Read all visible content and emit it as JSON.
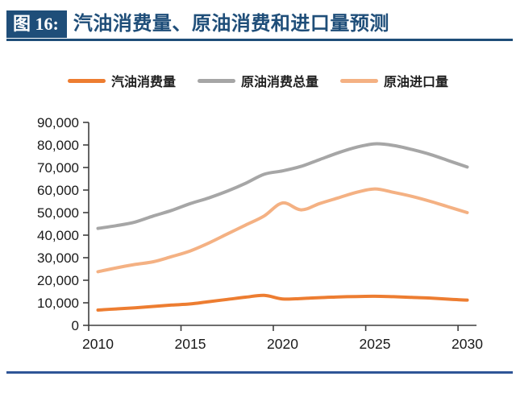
{
  "figure": {
    "label": "图 16:",
    "title": "汽油消费量、原油消费和进口量预测"
  },
  "colors": {
    "header_navy": "#1F4E79",
    "bottom_rule_blue": "#2F5597",
    "axis": "#3f3f3f",
    "tick_label": "#1a1a1a"
  },
  "chart_data": {
    "type": "line",
    "title": "汽油消费量、原油消费和进口量预测",
    "x": [
      2010,
      2011,
      2012,
      2013,
      2014,
      2015,
      2016,
      2017,
      2018,
      2019,
      2020,
      2021,
      2022,
      2023,
      2024,
      2025,
      2026,
      2027,
      2028,
      2029,
      2030
    ],
    "series": [
      {
        "name": "汽油消费量",
        "color": "#ED7D31",
        "values": [
          6800,
          7300,
          7800,
          8400,
          9000,
          9500,
          10500,
          11500,
          12500,
          13300,
          11700,
          11900,
          12300,
          12600,
          12800,
          12900,
          12700,
          12400,
          12100,
          11600,
          11200
        ]
      },
      {
        "name": "原油消费总量",
        "color": "#A6A6A6",
        "values": [
          43000,
          44200,
          45800,
          48500,
          51000,
          54000,
          56500,
          59500,
          63000,
          67000,
          68500,
          70500,
          73500,
          76500,
          79000,
          80500,
          79800,
          78000,
          75800,
          73000,
          70200
        ]
      },
      {
        "name": "原油进口量",
        "color": "#F4B183",
        "values": [
          23800,
          25500,
          27000,
          28200,
          30500,
          33000,
          36500,
          40500,
          44500,
          48500,
          54300,
          51200,
          54000,
          56500,
          59000,
          60500,
          59000,
          57200,
          55000,
          52500,
          50000
        ]
      }
    ],
    "xlabel": "",
    "ylabel": "",
    "ylim": [
      0,
      90000
    ],
    "ytick_step": 10000,
    "xticks": [
      2010,
      2015,
      2020,
      2025,
      2030
    ],
    "grid": false,
    "legend_position": "top"
  }
}
